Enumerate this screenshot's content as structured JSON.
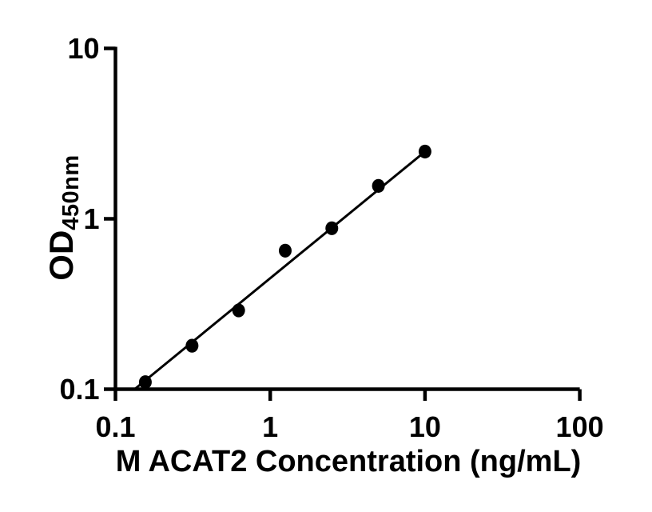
{
  "figure": {
    "background_color": "#ffffff",
    "foreground_color": "#000000"
  },
  "chart_data": {
    "type": "scatter",
    "title": "",
    "xlabel": "M ACAT2 Concentration (ng/mL)",
    "ylabel_main": "OD",
    "ylabel_sub": "450nm",
    "ylabel_full": "OD450nm",
    "xscale": "log",
    "yscale": "log",
    "xlim": [
      0.1,
      100
    ],
    "ylim": [
      0.1,
      10
    ],
    "grid": false,
    "legend": null,
    "x_ticks": [
      {
        "value": 0.1,
        "label": "0.1"
      },
      {
        "value": 1,
        "label": "1"
      },
      {
        "value": 10,
        "label": "10"
      },
      {
        "value": 100,
        "label": "100"
      }
    ],
    "y_ticks": [
      {
        "value": 10,
        "label": "10"
      },
      {
        "value": 1,
        "label": "1"
      },
      {
        "value": 0.1,
        "label": "0.1"
      }
    ],
    "points": [
      {
        "x": 0.156,
        "y": 0.11
      },
      {
        "x": 0.3125,
        "y": 0.18
      },
      {
        "x": 0.625,
        "y": 0.29
      },
      {
        "x": 1.25,
        "y": 0.65
      },
      {
        "x": 2.5,
        "y": 0.88
      },
      {
        "x": 5,
        "y": 1.56
      },
      {
        "x": 10,
        "y": 2.48
      }
    ],
    "fit_line": {
      "x1": 0.133,
      "y1": 0.1,
      "x2": 10,
      "y2": 2.48
    },
    "marker_color": "#000000",
    "line_color": "#000000",
    "axis_color": "#000000"
  }
}
